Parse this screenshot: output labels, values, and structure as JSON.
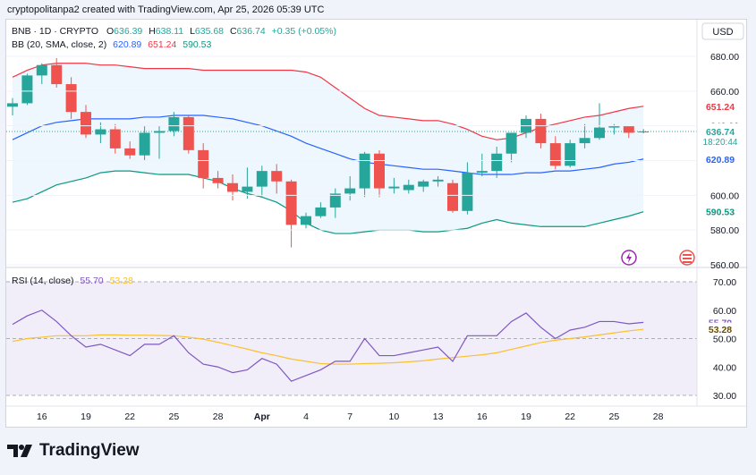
{
  "header": {
    "attribution": "cryptopolitanpa2 created with TradingView.com, Apr 25, 2026 05:39 UTC"
  },
  "legend": {
    "symbol": "BNB · 1D · CRYPTO",
    "o_label": "O",
    "o_value": "636.39",
    "h_label": "H",
    "h_value": "638.11",
    "l_label": "L",
    "l_value": "635.68",
    "c_label": "C",
    "c_value": "636.74",
    "change": "+0.35 (+0.05%)",
    "bb_label": "BB (20, SMA, close, 2)",
    "bb_basis": "620.89",
    "bb_upper": "651.24",
    "bb_lower": "590.53",
    "rsi_label": "RSI (14, close)",
    "rsi_value": "55.70",
    "rsi_ma": "53.28"
  },
  "currency": "USD",
  "badges": {
    "price": "636.74",
    "countdown": "18:20:44",
    "upper": "651.24",
    "basis": "620.89",
    "lower": "590.53",
    "rsi": "55.70",
    "rsi_ma": "53.28"
  },
  "brand": {
    "name": "TradingView"
  },
  "colors": {
    "up": "#26a69a",
    "down": "#ef5350",
    "upper_band": "#f23645",
    "basis": "#2962ff",
    "lower_band": "#089981",
    "band_fill": "#e3f2fd",
    "rsi": "#7e57c2",
    "rsi_ma": "#fbc02d",
    "rsi_fill": "#ede7f6"
  },
  "chart_data": [
    {
      "type": "candlestick",
      "title": "BNB · 1D · CRYPTO",
      "y_axis": {
        "min": 560,
        "max": 680,
        "ticks": [
          "680.00",
          "660.00",
          "640.00",
          "620.00",
          "600.00",
          "580.00",
          "560.00"
        ]
      },
      "x_ticks": [
        "16",
        "19",
        "22",
        "25",
        "28",
        "Apr",
        "4",
        "7",
        "10",
        "13",
        "16",
        "19",
        "22",
        "25",
        "28"
      ],
      "candles": [
        {
          "o": 651,
          "h": 656,
          "l": 646,
          "c": 653
        },
        {
          "o": 653,
          "h": 670,
          "l": 652,
          "c": 669
        },
        {
          "o": 669,
          "h": 676,
          "l": 664,
          "c": 675
        },
        {
          "o": 675,
          "h": 679,
          "l": 662,
          "c": 664
        },
        {
          "o": 664,
          "h": 668,
          "l": 644,
          "c": 648
        },
        {
          "o": 648,
          "h": 652,
          "l": 633,
          "c": 635
        },
        {
          "o": 635,
          "h": 642,
          "l": 630,
          "c": 638
        },
        {
          "o": 638,
          "h": 641,
          "l": 624,
          "c": 627
        },
        {
          "o": 627,
          "h": 631,
          "l": 621,
          "c": 623
        },
        {
          "o": 623,
          "h": 640,
          "l": 620,
          "c": 636
        },
        {
          "o": 636,
          "h": 640,
          "l": 621,
          "c": 637
        },
        {
          "o": 637,
          "h": 648,
          "l": 634,
          "c": 645
        },
        {
          "o": 645,
          "h": 646,
          "l": 624,
          "c": 626
        },
        {
          "o": 626,
          "h": 630,
          "l": 604,
          "c": 610
        },
        {
          "o": 610,
          "h": 614,
          "l": 604,
          "c": 607
        },
        {
          "o": 607,
          "h": 612,
          "l": 597,
          "c": 602
        },
        {
          "o": 602,
          "h": 616,
          "l": 598,
          "c": 605
        },
        {
          "o": 605,
          "h": 617,
          "l": 599,
          "c": 614
        },
        {
          "o": 614,
          "h": 618,
          "l": 601,
          "c": 608
        },
        {
          "o": 608,
          "h": 609,
          "l": 570,
          "c": 583
        },
        {
          "o": 583,
          "h": 590,
          "l": 581,
          "c": 588
        },
        {
          "o": 588,
          "h": 596,
          "l": 587,
          "c": 593
        },
        {
          "o": 593,
          "h": 604,
          "l": 587,
          "c": 601
        },
        {
          "o": 601,
          "h": 611,
          "l": 597,
          "c": 604
        },
        {
          "o": 604,
          "h": 625,
          "l": 599,
          "c": 624
        },
        {
          "o": 624,
          "h": 626,
          "l": 599,
          "c": 604
        },
        {
          "o": 604,
          "h": 610,
          "l": 601,
          "c": 605
        },
        {
          "o": 603,
          "h": 609,
          "l": 601,
          "c": 606
        },
        {
          "o": 605,
          "h": 609,
          "l": 602,
          "c": 608
        },
        {
          "o": 608,
          "h": 611,
          "l": 605,
          "c": 609
        },
        {
          "o": 607,
          "h": 609,
          "l": 590,
          "c": 591
        },
        {
          "o": 591,
          "h": 619,
          "l": 589,
          "c": 613
        },
        {
          "o": 613,
          "h": 624,
          "l": 611,
          "c": 614
        },
        {
          "o": 614,
          "h": 628,
          "l": 610,
          "c": 624
        },
        {
          "o": 624,
          "h": 636,
          "l": 619,
          "c": 636
        },
        {
          "o": 636,
          "h": 646,
          "l": 633,
          "c": 644
        },
        {
          "o": 644,
          "h": 647,
          "l": 627,
          "c": 630
        },
        {
          "o": 630,
          "h": 634,
          "l": 615,
          "c": 617
        },
        {
          "o": 617,
          "h": 632,
          "l": 616,
          "c": 630
        },
        {
          "o": 630,
          "h": 641,
          "l": 627,
          "c": 633
        },
        {
          "o": 633,
          "h": 653,
          "l": 632,
          "c": 639
        },
        {
          "o": 639,
          "h": 641,
          "l": 635,
          "c": 640
        },
        {
          "o": 640,
          "h": 640,
          "l": 633,
          "c": 636
        },
        {
          "o": 636.39,
          "h": 638.11,
          "l": 635.68,
          "c": 636.74
        }
      ],
      "bb_upper": [
        668,
        672,
        675,
        676,
        676,
        676,
        675,
        675,
        674,
        673,
        673,
        673,
        673,
        672,
        672,
        672,
        672,
        672,
        672,
        672,
        671,
        668,
        662,
        656,
        650,
        646,
        645,
        644,
        643,
        643,
        641,
        638,
        634,
        632,
        633,
        636,
        639,
        641,
        643,
        645,
        646,
        648,
        650,
        651.24
      ],
      "bb_basis": [
        632,
        636,
        640,
        642,
        643,
        644,
        644,
        644,
        644,
        645,
        645,
        646,
        646,
        646,
        645,
        644,
        642,
        640,
        637,
        634,
        630,
        627,
        624,
        621,
        619,
        618,
        617,
        616,
        615,
        615,
        614,
        613,
        612,
        612,
        612,
        613,
        613,
        614,
        614,
        615,
        616,
        618,
        619,
        620.89
      ],
      "bb_lower": [
        596,
        598,
        602,
        606,
        608,
        610,
        613,
        614,
        614,
        613,
        612,
        612,
        612,
        610,
        608,
        604,
        601,
        599,
        596,
        591,
        584,
        580,
        578,
        578,
        579,
        580,
        580,
        580,
        579,
        579,
        580,
        581,
        584,
        586,
        584,
        583,
        582,
        582,
        582,
        582,
        584,
        586,
        588,
        590.53
      ]
    },
    {
      "type": "line",
      "title": "RSI (14, close)",
      "y_axis": {
        "min": 30,
        "max": 70,
        "ticks": [
          "70.00",
          "60.00",
          "50.00",
          "40.00",
          "30.00"
        ]
      },
      "band": [
        30,
        70
      ],
      "series": [
        {
          "name": "RSI",
          "values": [
            55,
            58,
            60,
            56,
            51,
            47,
            48,
            46,
            44,
            48,
            48,
            51,
            45,
            41,
            40,
            38,
            39,
            43,
            41,
            35,
            37,
            39,
            42,
            42,
            50,
            44,
            44,
            45,
            46,
            47,
            42,
            51,
            51,
            51,
            56,
            59,
            54,
            50,
            53,
            54,
            56,
            56,
            55.2,
            55.7
          ]
        },
        {
          "name": "RSI MA",
          "values": [
            49,
            50,
            50.5,
            51,
            51,
            51,
            51.3,
            51.3,
            51.2,
            51.2,
            51.1,
            51,
            50.5,
            49.8,
            48.7,
            47.5,
            46.3,
            45,
            44,
            42.8,
            42,
            41.2,
            41,
            41,
            41.2,
            41.3,
            41.5,
            41.8,
            42.2,
            42.8,
            43.3,
            43.8,
            44.3,
            45,
            46.2,
            47.4,
            48.6,
            49.4,
            50,
            50.6,
            51.3,
            52,
            52.7,
            53.28
          ]
        }
      ]
    }
  ]
}
